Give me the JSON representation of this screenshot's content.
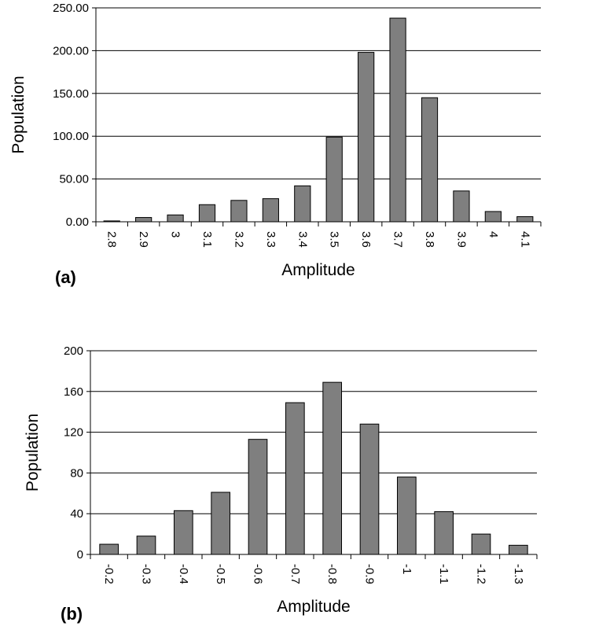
{
  "colors": {
    "bar_fill": "#7f7f7f",
    "bar_stroke": "#000000",
    "grid": "#000000",
    "axis": "#000000"
  },
  "chart_data": [
    {
      "type": "bar",
      "panel_label": "(a)",
      "title": "",
      "xlabel": "Amplitude",
      "ylabel": "Population",
      "ylim": [
        0,
        250
      ],
      "y_ticks": [
        "0.00",
        "50.00",
        "100.00",
        "150.00",
        "200.00",
        "250.00"
      ],
      "grid": true,
      "categories": [
        "2.8",
        "2.9",
        "3",
        "3.1",
        "3.2",
        "3.3",
        "3.4",
        "3.5",
        "3.6",
        "3.7",
        "3.8",
        "3.9",
        "4",
        "4.1"
      ],
      "values": [
        1,
        5,
        8,
        20,
        25,
        27,
        42,
        99,
        198,
        238,
        145,
        36,
        12,
        6
      ]
    },
    {
      "type": "bar",
      "panel_label": "(b)",
      "title": "",
      "xlabel": "Amplitude",
      "ylabel": "Population",
      "ylim": [
        0,
        200
      ],
      "y_ticks": [
        "0",
        "40",
        "80",
        "120",
        "160",
        "200"
      ],
      "grid": true,
      "categories": [
        "-0.2",
        "-0.3",
        "-0.4",
        "-0.5",
        "-0.6",
        "-0.7",
        "-0.8",
        "-0.9",
        "-1",
        "-1.1",
        "-1.2",
        "-1.3"
      ],
      "values": [
        10,
        18,
        43,
        61,
        113,
        149,
        169,
        128,
        76,
        42,
        20,
        9
      ]
    }
  ]
}
